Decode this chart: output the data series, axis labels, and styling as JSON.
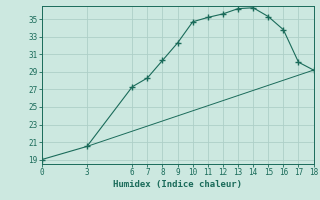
{
  "xlabel": "Humidex (Indice chaleur)",
  "ylabel": "",
  "background_color": "#cce8e0",
  "grid_color": "#aecfc8",
  "line_color": "#1a6b5a",
  "xlim": [
    0,
    18
  ],
  "ylim": [
    18.5,
    36.5
  ],
  "xticks": [
    0,
    3,
    6,
    7,
    8,
    9,
    10,
    11,
    12,
    13,
    14,
    15,
    16,
    17,
    18
  ],
  "yticks": [
    19,
    21,
    23,
    25,
    27,
    29,
    31,
    33,
    35
  ],
  "line1_x": [
    0,
    3,
    6,
    7,
    8,
    9,
    10,
    11,
    12,
    13,
    14,
    15,
    16,
    17,
    18
  ],
  "line1_y": [
    19.0,
    20.5,
    27.3,
    28.3,
    30.3,
    32.3,
    34.7,
    35.2,
    35.6,
    36.2,
    36.3,
    35.3,
    33.8,
    30.1,
    29.2
  ],
  "line2_x": [
    3,
    18
  ],
  "line2_y": [
    20.5,
    29.2
  ],
  "marker": "+",
  "marker_size": 4,
  "font_size_label": 6.5,
  "font_size_tick": 5.5
}
